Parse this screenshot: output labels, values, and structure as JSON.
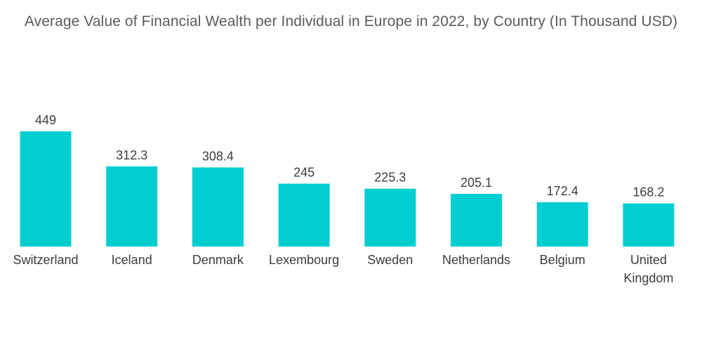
{
  "chart_data": {
    "type": "bar",
    "title": "Average Value of Financial Wealth per Individual in Europe in 2022, by Country (In Thousand USD)",
    "categories": [
      "Switzerland",
      "Iceland",
      "Denmark",
      "Lexembourg",
      "Sweden",
      "Netherlands",
      "Belgium",
      "United Kingdom"
    ],
    "category_lines": [
      [
        "Switzerland"
      ],
      [
        "Iceland"
      ],
      [
        "Denmark"
      ],
      [
        "Lexembourg"
      ],
      [
        "Sweden"
      ],
      [
        "Netherlands"
      ],
      [
        "Belgium"
      ],
      [
        "United",
        "Kingdom"
      ]
    ],
    "values": [
      449,
      312.3,
      308.4,
      245,
      225.3,
      205.1,
      172.4,
      168.2
    ],
    "value_labels": [
      "449",
      "312.3",
      "308.4",
      "245",
      "225.3",
      "205.1",
      "172.4",
      "168.2"
    ],
    "xlabel": "",
    "ylabel": "",
    "ylim": [
      0,
      449
    ],
    "grid": false,
    "legend": "none",
    "colors": {
      "bar": "#00CED1",
      "text": "#3c3c3c",
      "title": "#5b5b5b"
    }
  }
}
